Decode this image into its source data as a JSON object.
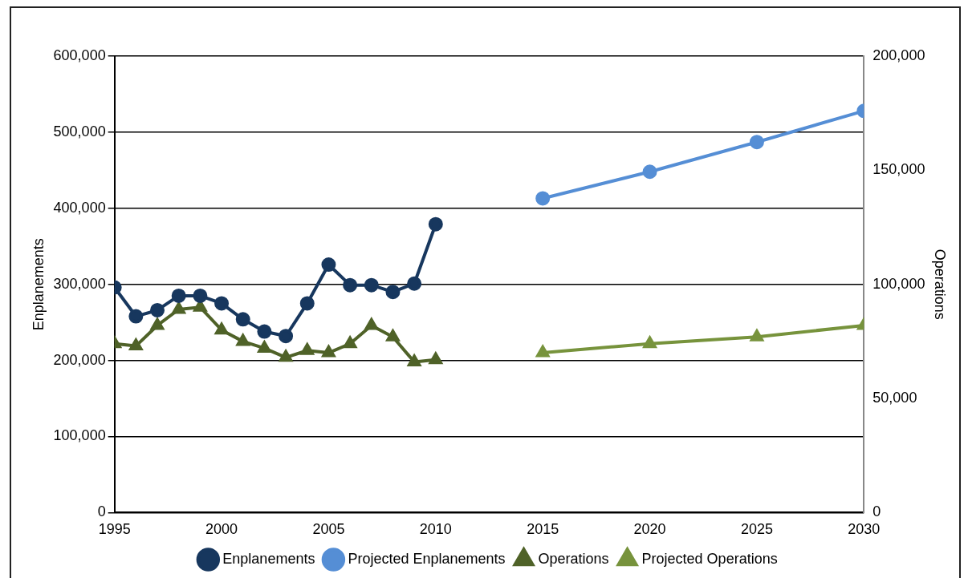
{
  "chart_data": {
    "type": "line",
    "ylabel": "Enplanements",
    "y2label": "Operations",
    "xlim": [
      1995,
      2030
    ],
    "xticks": [
      1995,
      2000,
      2005,
      2010,
      2015,
      2020,
      2025,
      2030
    ],
    "ylim": [
      0,
      600000
    ],
    "yticks": [
      0,
      {
        "value": 100000,
        "label": "100,000"
      },
      {
        "value": 200000,
        "label": "200,000"
      },
      {
        "value": 300000,
        "label": "300,000"
      },
      {
        "value": 400000,
        "label": "400,000"
      },
      {
        "value": 500000,
        "label": "500,000"
      },
      {
        "value": 600000,
        "label": "600,000"
      }
    ],
    "y2lim": [
      0,
      200000
    ],
    "y2ticks": [
      0,
      {
        "value": 50000,
        "label": "50,000"
      },
      {
        "value": 100000,
        "label": "100,000"
      },
      {
        "value": 150000,
        "label": "150,000"
      },
      {
        "value": 200000,
        "label": "200,000"
      }
    ],
    "grid": "y",
    "legend": "bottom",
    "series": [
      {
        "name": "Enplanements",
        "color": "#17375e",
        "marker": "circle",
        "x": [
          1995,
          1996,
          1997,
          1998,
          1999,
          2000,
          2001,
          2002,
          2003,
          2004,
          2005,
          2006,
          2007,
          2008,
          2009,
          2010
        ],
        "values": [
          296000,
          258000,
          266000,
          285000,
          285000,
          275000,
          254000,
          238000,
          232000,
          275000,
          326000,
          299000,
          299000,
          290000,
          301000,
          379000
        ]
      },
      {
        "name": "Projected Enplanements",
        "color": "#558ed5",
        "marker": "circle",
        "x": [
          2015,
          2020,
          2025,
          2030
        ],
        "values": [
          413000,
          448000,
          487000,
          528000
        ]
      },
      {
        "name": "Operations",
        "color": "#4f6228",
        "marker": "triangle",
        "axis": "y2",
        "x": [
          1995,
          1996,
          1997,
          1998,
          1999,
          2000,
          2001,
          2002,
          2003,
          2004,
          2005,
          2006,
          2007,
          2008,
          2009,
          2010
        ],
        "values": [
          74000,
          73000,
          82000,
          89000,
          90000,
          80000,
          75000,
          72000,
          68000,
          71000,
          70000,
          74000,
          82000,
          77000,
          66000,
          67000
        ]
      },
      {
        "name": "Projected Operations",
        "color": "#77933c",
        "marker": "triangle",
        "axis": "y2",
        "x": [
          2015,
          2020,
          2025,
          2030
        ],
        "values": [
          70000,
          74000,
          77000,
          82000
        ]
      }
    ]
  }
}
